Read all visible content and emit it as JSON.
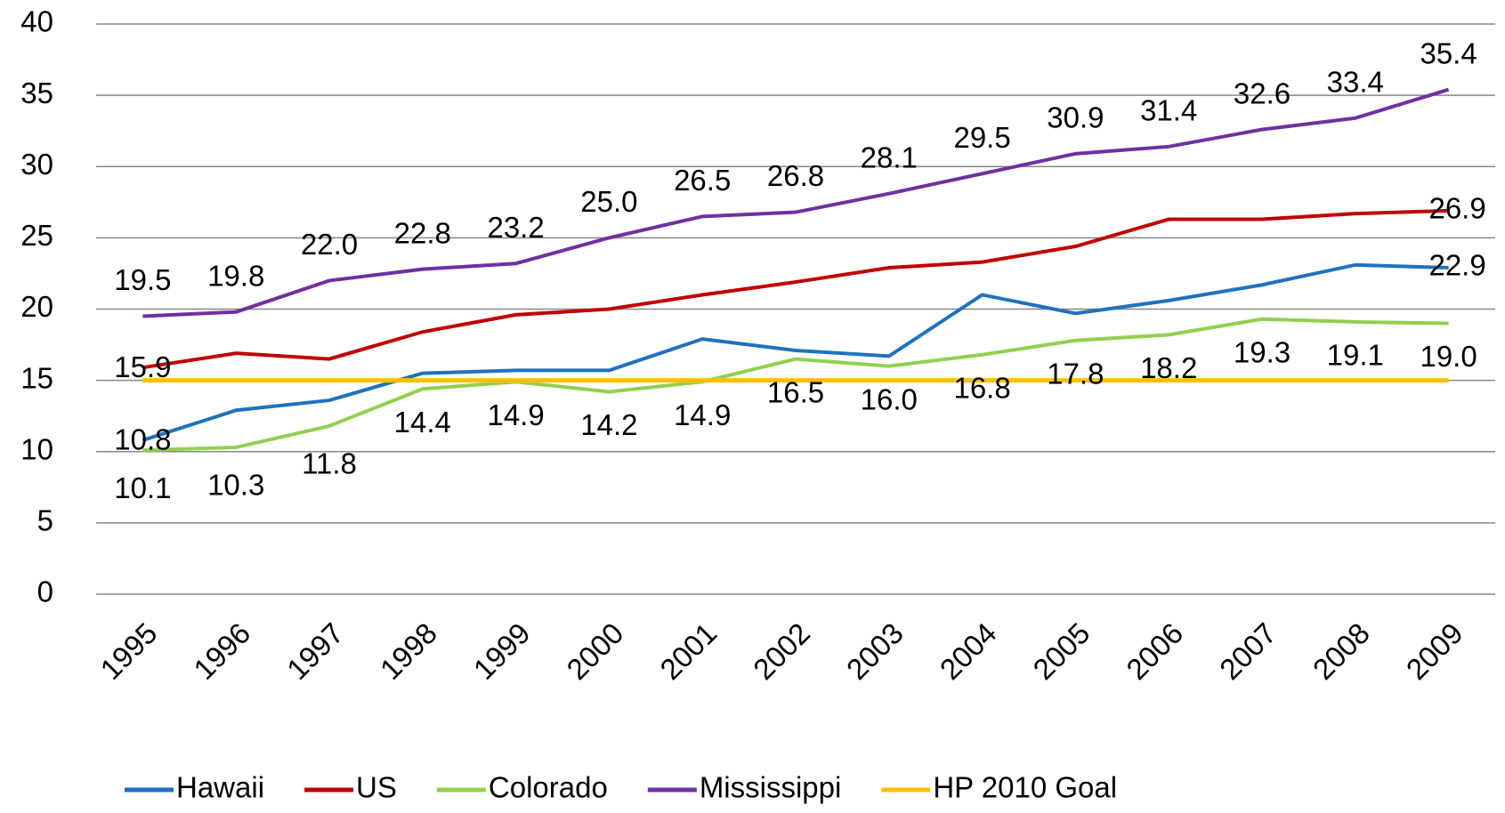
{
  "chart_data": {
    "type": "line",
    "categories": [
      "1995",
      "1996",
      "1997",
      "1998",
      "1999",
      "2000",
      "2001",
      "2002",
      "2003",
      "2004",
      "2005",
      "2006",
      "2007",
      "2008",
      "2009"
    ],
    "series": [
      {
        "name": "Hawaii",
        "color": "#1f72bd",
        "values": [
          10.8,
          12.9,
          13.6,
          15.5,
          15.7,
          15.7,
          17.9,
          17.1,
          16.7,
          21.0,
          19.7,
          20.6,
          21.7,
          23.1,
          22.9
        ],
        "value_labels": [
          "10.8",
          null,
          null,
          null,
          null,
          null,
          null,
          null,
          null,
          null,
          null,
          null,
          null,
          null,
          "22.9"
        ]
      },
      {
        "name": "US",
        "color": "#c00000",
        "values": [
          15.9,
          16.9,
          16.5,
          18.4,
          19.6,
          20.0,
          21.0,
          21.9,
          22.9,
          23.3,
          24.4,
          26.3,
          26.3,
          26.7,
          26.9
        ],
        "value_labels": [
          "15.9",
          null,
          null,
          null,
          null,
          null,
          null,
          null,
          null,
          null,
          null,
          null,
          null,
          null,
          "26.9"
        ]
      },
      {
        "name": "Colorado",
        "color": "#92d050",
        "values": [
          10.1,
          10.3,
          11.8,
          14.4,
          14.9,
          14.2,
          14.9,
          16.5,
          16.0,
          16.8,
          17.8,
          18.2,
          19.3,
          19.1,
          19.0
        ],
        "value_labels": [
          "10.1",
          "10.3",
          "11.8",
          "14.4",
          "14.9",
          "14.2",
          "14.9",
          "16.5",
          "16.0",
          "16.8",
          "17.8",
          "18.2",
          "19.3",
          "19.1",
          "19.0"
        ]
      },
      {
        "name": "Mississippi",
        "color": "#7030a0",
        "values": [
          19.5,
          19.8,
          22.0,
          22.8,
          23.2,
          25.0,
          26.5,
          26.8,
          28.1,
          29.5,
          30.9,
          31.4,
          32.6,
          33.4,
          35.4
        ],
        "value_labels": [
          "19.5",
          "19.8",
          "22.0",
          "22.8",
          "23.2",
          "25.0",
          "26.5",
          "26.8",
          "28.1",
          "29.5",
          "30.9",
          "31.4",
          "32.6",
          "33.4",
          "35.4"
        ]
      },
      {
        "name": "HP 2010 Goal",
        "color": "#ffc000",
        "values": [
          15,
          15,
          15,
          15,
          15,
          15,
          15,
          15,
          15,
          15,
          15,
          15,
          15,
          15,
          15
        ]
      }
    ],
    "ylim": [
      0,
      40
    ],
    "yticks": [
      0,
      5,
      10,
      15,
      20,
      25,
      30,
      35,
      40
    ],
    "grid": true,
    "legend": "bottom"
  }
}
